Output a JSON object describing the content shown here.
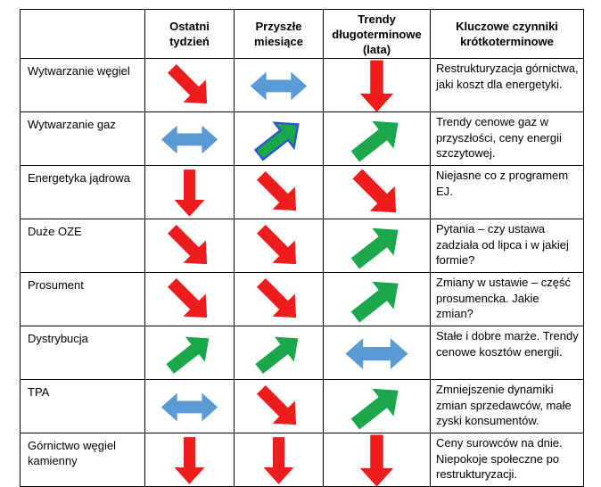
{
  "colors": {
    "up": "#1aa64a",
    "down": "#ee1c1c",
    "stable": "#5b9bd5",
    "mixed_fill": "#1aa64a",
    "mixed_stroke": "#2e4fd0"
  },
  "headers": [
    "",
    "Ostatni\ntydzień",
    "Przyszłe\nmiesiące",
    "Trendy\ndługoterminowe\n(lata)",
    "Kluczowe czynniki\nkrótkoterminowe"
  ],
  "rows": [
    {
      "label": "Wytwarzanie węgiel",
      "last_week": "down-right",
      "next_months": "double",
      "long_term": "down",
      "factors": "Restrukturyzacja górnictwa, jaki koszt dla energetyki."
    },
    {
      "label": "Wytwarzanie gaz",
      "last_week": "double",
      "next_months": "up-right-mixed",
      "long_term": "up-right",
      "factors": "Trendy cenowe gaz w przyszłości, ceny energii szczytowej."
    },
    {
      "label": "Energetyka jądrowa",
      "last_week": "down",
      "next_months": "down-right",
      "long_term": "down-right",
      "factors": "Niejasne co z programem EJ."
    },
    {
      "label": "Duże OZE",
      "last_week": "down-right",
      "next_months": "down-right",
      "long_term": "up-right",
      "factors": "Pytania – czy ustawa zadziała od lipca i w jakiej formie?"
    },
    {
      "label": "Prosument",
      "last_week": "down-right",
      "next_months": "down-right",
      "long_term": "up-right",
      "factors": "Zmiany w ustawie – część prosumencka. Jakie zmian?"
    },
    {
      "label": "Dystrybucja",
      "last_week": "up-right",
      "next_months": "up-right",
      "long_term": "double",
      "factors": "Stałe i dobre marże. Trendy cenowe kosztów energii."
    },
    {
      "label": "TPA",
      "last_week": "double",
      "next_months": "down-right",
      "long_term": "up-right",
      "factors": "Zmniejszenie dynamiki zmian sprzedawców, małe zyski konsumentów."
    },
    {
      "label": "Górnictwo węgiel kamienny",
      "last_week": "down",
      "next_months": "down",
      "long_term": "down",
      "factors": "Ceny surowców na dnie. Niepokoje społeczne po restrukturyzacji."
    }
  ]
}
